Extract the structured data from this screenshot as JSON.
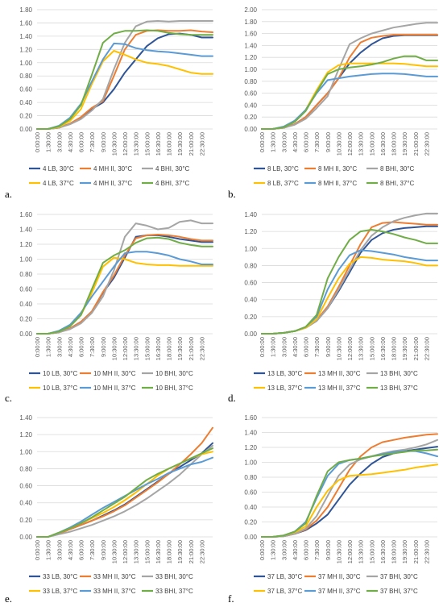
{
  "x_ticks": [
    "0:00:00",
    "1:30:00",
    "3:00:00",
    "4:30:00",
    "6:00:00",
    "7:30:00",
    "9:00:00",
    "10:30:00",
    "12:00:00",
    "13:30:00",
    "15:00:00",
    "16:30:00",
    "18:00:00",
    "19:30:00",
    "21:00:00",
    "22:30:00"
  ],
  "chart_data": [
    {
      "type": "line",
      "panel": "a.",
      "x": [
        0,
        1,
        2,
        3,
        4,
        5,
        6,
        7,
        8,
        9,
        10,
        11,
        12,
        13,
        14,
        15,
        16
      ],
      "ylim": [
        0,
        1.8
      ],
      "yticks": [
        0,
        0.2,
        0.4,
        0.6,
        0.8,
        1.0,
        1.2,
        1.4,
        1.6,
        1.8
      ],
      "ydigits": 2,
      "series": [
        {
          "name": "4 LB, 30°C",
          "color": "#2F5597",
          "values": [
            0,
            0,
            0.02,
            0.08,
            0.17,
            0.3,
            0.4,
            0.6,
            0.85,
            1.05,
            1.25,
            1.37,
            1.43,
            1.44,
            1.42,
            1.38,
            1.38
          ]
        },
        {
          "name": "4 MH II, 30°C",
          "color": "#ED7D31",
          "values": [
            0,
            0,
            0.02,
            0.08,
            0.18,
            0.32,
            0.42,
            0.8,
            1.2,
            1.42,
            1.48,
            1.49,
            1.48,
            1.48,
            1.49,
            1.47,
            1.46
          ]
        },
        {
          "name": "4 BHI, 30°C",
          "color": "#A5A5A5",
          "values": [
            0,
            0,
            0.02,
            0.07,
            0.15,
            0.28,
            0.45,
            0.9,
            1.3,
            1.55,
            1.62,
            1.63,
            1.62,
            1.63,
            1.63,
            1.63,
            1.63
          ]
        },
        {
          "name": "4 LB, 37°C",
          "color": "#FFC000",
          "values": [
            0,
            0,
            0.03,
            0.12,
            0.3,
            0.68,
            1.02,
            1.18,
            1.12,
            1.05,
            1.0,
            0.98,
            0.95,
            0.9,
            0.85,
            0.83,
            0.83
          ]
        },
        {
          "name": "4 MH II, 37°C",
          "color": "#5B9BD5",
          "values": [
            0,
            0,
            0.05,
            0.17,
            0.38,
            0.72,
            1.05,
            1.29,
            1.28,
            1.22,
            1.19,
            1.17,
            1.16,
            1.14,
            1.12,
            1.1,
            1.1
          ]
        },
        {
          "name": "4 BHI, 37°C",
          "color": "#70AD47",
          "values": [
            0,
            0,
            0.04,
            0.15,
            0.36,
            0.82,
            1.3,
            1.44,
            1.48,
            1.48,
            1.49,
            1.48,
            1.45,
            1.43,
            1.42,
            1.42,
            1.42
          ]
        }
      ]
    },
    {
      "type": "line",
      "panel": "b.",
      "x": [
        0,
        1,
        2,
        3,
        4,
        5,
        6,
        7,
        8,
        9,
        10,
        11,
        12,
        13,
        14,
        15,
        16
      ],
      "ylim": [
        0,
        2.0
      ],
      "yticks": [
        0,
        0.2,
        0.4,
        0.6,
        0.8,
        1.0,
        1.2,
        1.4,
        1.6,
        1.8,
        2.0
      ],
      "ydigits": 2,
      "series": [
        {
          "name": "8 LB, 30°C",
          "color": "#2F5597",
          "values": [
            0,
            0,
            0.02,
            0.08,
            0.2,
            0.4,
            0.6,
            0.85,
            1.1,
            1.28,
            1.42,
            1.52,
            1.56,
            1.57,
            1.57,
            1.57,
            1.57
          ]
        },
        {
          "name": "8 MH II, 30°C",
          "color": "#ED7D31",
          "values": [
            0,
            0,
            0.02,
            0.08,
            0.2,
            0.4,
            0.6,
            0.85,
            1.2,
            1.45,
            1.53,
            1.56,
            1.58,
            1.58,
            1.58,
            1.58,
            1.58
          ]
        },
        {
          "name": "8 BHI, 30°C",
          "color": "#A5A5A5",
          "values": [
            0,
            0,
            0.02,
            0.07,
            0.17,
            0.35,
            0.55,
            1.0,
            1.42,
            1.52,
            1.6,
            1.65,
            1.7,
            1.73,
            1.76,
            1.78,
            1.78
          ]
        },
        {
          "name": "8 LB, 37°C",
          "color": "#FFC000",
          "values": [
            0,
            0,
            0.03,
            0.12,
            0.32,
            0.65,
            0.95,
            1.07,
            1.1,
            1.1,
            1.1,
            1.1,
            1.1,
            1.09,
            1.07,
            1.05,
            1.05
          ]
        },
        {
          "name": "8 MH II, 37°C",
          "color": "#5B9BD5",
          "values": [
            0,
            0,
            0.04,
            0.14,
            0.32,
            0.6,
            0.82,
            0.85,
            0.88,
            0.9,
            0.92,
            0.93,
            0.93,
            0.92,
            0.9,
            0.88,
            0.88
          ]
        },
        {
          "name": "8 BHI, 37°C",
          "color": "#70AD47",
          "values": [
            0,
            0,
            0.03,
            0.12,
            0.3,
            0.62,
            0.92,
            1.0,
            1.03,
            1.05,
            1.08,
            1.12,
            1.18,
            1.22,
            1.22,
            1.15,
            1.15
          ]
        }
      ]
    },
    {
      "type": "line",
      "panel": "c.",
      "x": [
        0,
        1,
        2,
        3,
        4,
        5,
        6,
        7,
        8,
        9,
        10,
        11,
        12,
        13,
        14,
        15,
        16
      ],
      "ylim": [
        0,
        1.6
      ],
      "yticks": [
        0,
        0.2,
        0.4,
        0.6,
        0.8,
        1.0,
        1.2,
        1.4,
        1.6
      ],
      "ydigits": 2,
      "series": [
        {
          "name": "10 LB, 30°C",
          "color": "#2F5597",
          "values": [
            0,
            0,
            0.02,
            0.07,
            0.16,
            0.3,
            0.55,
            0.75,
            1.02,
            1.3,
            1.32,
            1.32,
            1.3,
            1.27,
            1.25,
            1.23,
            1.23
          ]
        },
        {
          "name": "10 MH II, 30°C",
          "color": "#ED7D31",
          "values": [
            0,
            0,
            0.02,
            0.07,
            0.16,
            0.3,
            0.56,
            0.78,
            1.05,
            1.28,
            1.32,
            1.33,
            1.32,
            1.3,
            1.27,
            1.25,
            1.25
          ]
        },
        {
          "name": "10 BHI, 30°C",
          "color": "#A5A5A5",
          "values": [
            0,
            0,
            0.02,
            0.06,
            0.14,
            0.28,
            0.5,
            0.85,
            1.3,
            1.48,
            1.45,
            1.4,
            1.42,
            1.5,
            1.52,
            1.48,
            1.48
          ]
        },
        {
          "name": "10 LB, 37°C",
          "color": "#FFC000",
          "values": [
            0,
            0,
            0.03,
            0.1,
            0.25,
            0.55,
            0.9,
            1.02,
            1.0,
            0.95,
            0.93,
            0.92,
            0.92,
            0.91,
            0.91,
            0.91,
            0.91
          ]
        },
        {
          "name": "10 MH II, 37°C",
          "color": "#5B9BD5",
          "values": [
            0,
            0,
            0.04,
            0.12,
            0.28,
            0.5,
            0.7,
            0.9,
            1.08,
            1.1,
            1.1,
            1.08,
            1.05,
            1.0,
            0.97,
            0.93,
            0.93
          ]
        },
        {
          "name": "10 BHI, 37°C",
          "color": "#70AD47",
          "values": [
            0,
            0,
            0.03,
            0.1,
            0.25,
            0.6,
            0.95,
            1.05,
            1.12,
            1.22,
            1.28,
            1.29,
            1.27,
            1.22,
            1.19,
            1.17,
            1.17
          ]
        }
      ]
    },
    {
      "type": "line",
      "panel": "d.",
      "x": [
        0,
        1,
        2,
        3,
        4,
        5,
        6,
        7,
        8,
        9,
        10,
        11,
        12,
        13,
        14,
        15,
        16
      ],
      "ylim": [
        0,
        1.4
      ],
      "yticks": [
        0,
        0.2,
        0.4,
        0.6,
        0.8,
        1.0,
        1.2,
        1.4
      ],
      "ydigits": 2,
      "series": [
        {
          "name": "13 LB, 30°C",
          "color": "#2F5597",
          "values": [
            0,
            0,
            0.01,
            0.03,
            0.07,
            0.15,
            0.3,
            0.5,
            0.72,
            0.95,
            1.1,
            1.18,
            1.22,
            1.24,
            1.25,
            1.26,
            1.26
          ]
        },
        {
          "name": "13 MH II, 30°C",
          "color": "#ED7D31",
          "values": [
            0,
            0,
            0.01,
            0.03,
            0.07,
            0.16,
            0.32,
            0.55,
            0.8,
            1.05,
            1.25,
            1.3,
            1.31,
            1.3,
            1.29,
            1.28,
            1.28
          ]
        },
        {
          "name": "13 BHI, 30°C",
          "color": "#A5A5A5",
          "values": [
            0,
            0,
            0.01,
            0.03,
            0.07,
            0.15,
            0.3,
            0.52,
            0.75,
            0.98,
            1.15,
            1.25,
            1.32,
            1.36,
            1.39,
            1.41,
            1.41
          ]
        },
        {
          "name": "13 LB, 37°C",
          "color": "#FFC000",
          "values": [
            0,
            0,
            0.01,
            0.03,
            0.07,
            0.17,
            0.42,
            0.65,
            0.82,
            0.9,
            0.89,
            0.87,
            0.86,
            0.85,
            0.83,
            0.8,
            0.8
          ]
        },
        {
          "name": "13 MH II, 37°C",
          "color": "#5B9BD5",
          "values": [
            0,
            0,
            0.01,
            0.03,
            0.08,
            0.2,
            0.52,
            0.75,
            0.92,
            0.98,
            0.97,
            0.95,
            0.93,
            0.9,
            0.88,
            0.86,
            0.86
          ]
        },
        {
          "name": "13 BHI, 37°C",
          "color": "#70AD47",
          "values": [
            0,
            0,
            0.01,
            0.03,
            0.08,
            0.22,
            0.65,
            0.9,
            1.1,
            1.2,
            1.22,
            1.2,
            1.17,
            1.13,
            1.1,
            1.06,
            1.06
          ]
        }
      ]
    },
    {
      "type": "line",
      "panel": "e.",
      "x": [
        0,
        1,
        2,
        3,
        4,
        5,
        6,
        7,
        8,
        9,
        10,
        11,
        12,
        13,
        14,
        15,
        16
      ],
      "ylim": [
        0,
        1.4
      ],
      "yticks": [
        0,
        0.2,
        0.4,
        0.6,
        0.8,
        1.0,
        1.2,
        1.4
      ],
      "ydigits": 2,
      "series": [
        {
          "name": "33 LB, 30°C",
          "color": "#2F5597",
          "values": [
            0,
            0,
            0.04,
            0.09,
            0.14,
            0.19,
            0.25,
            0.31,
            0.38,
            0.47,
            0.56,
            0.65,
            0.74,
            0.82,
            0.9,
            0.98,
            1.1
          ]
        },
        {
          "name": "33 MH II, 30°C",
          "color": "#ED7D31",
          "values": [
            0,
            0,
            0.04,
            0.09,
            0.14,
            0.19,
            0.24,
            0.3,
            0.37,
            0.46,
            0.55,
            0.64,
            0.74,
            0.85,
            0.97,
            1.1,
            1.28
          ]
        },
        {
          "name": "33 BHI, 30°C",
          "color": "#A5A5A5",
          "values": [
            0,
            0,
            0.03,
            0.06,
            0.1,
            0.14,
            0.19,
            0.24,
            0.3,
            0.37,
            0.45,
            0.54,
            0.63,
            0.73,
            0.85,
            0.97,
            1.07
          ]
        },
        {
          "name": "33 LB, 37°C",
          "color": "#FFC000",
          "values": [
            0,
            0,
            0.05,
            0.1,
            0.16,
            0.22,
            0.28,
            0.35,
            0.43,
            0.52,
            0.62,
            0.72,
            0.8,
            0.86,
            0.92,
            0.97,
            1.0
          ]
        },
        {
          "name": "33 MH II, 37°C",
          "color": "#5B9BD5",
          "values": [
            0,
            0,
            0.05,
            0.11,
            0.18,
            0.26,
            0.34,
            0.41,
            0.48,
            0.55,
            0.62,
            0.68,
            0.75,
            0.8,
            0.85,
            0.88,
            0.93
          ]
        },
        {
          "name": "33 BHI, 37°C",
          "color": "#70AD47",
          "values": [
            0,
            0,
            0.05,
            0.1,
            0.16,
            0.23,
            0.31,
            0.39,
            0.47,
            0.57,
            0.67,
            0.74,
            0.8,
            0.86,
            0.92,
            0.98,
            1.04
          ]
        }
      ]
    },
    {
      "type": "line",
      "panel": "f.",
      "x": [
        0,
        1,
        2,
        3,
        4,
        5,
        6,
        7,
        8,
        9,
        10,
        11,
        12,
        13,
        14,
        15,
        16
      ],
      "ylim": [
        0,
        1.6
      ],
      "yticks": [
        0,
        0.2,
        0.4,
        0.6,
        0.8,
        1.0,
        1.2,
        1.4,
        1.6
      ],
      "ydigits": 2,
      "series": [
        {
          "name": "37 LB, 30°C",
          "color": "#2F5597",
          "values": [
            0,
            0,
            0.01,
            0.04,
            0.09,
            0.18,
            0.3,
            0.5,
            0.7,
            0.85,
            0.98,
            1.07,
            1.12,
            1.15,
            1.17,
            1.19,
            1.21
          ]
        },
        {
          "name": "37 MH II, 30°C",
          "color": "#ED7D31",
          "values": [
            0,
            0,
            0.01,
            0.04,
            0.1,
            0.22,
            0.4,
            0.65,
            0.9,
            1.08,
            1.2,
            1.27,
            1.3,
            1.33,
            1.35,
            1.37,
            1.38
          ]
        },
        {
          "name": "37 BHI, 30°C",
          "color": "#A5A5A5",
          "values": [
            0,
            0,
            0.01,
            0.04,
            0.11,
            0.28,
            0.55,
            0.82,
            0.97,
            1.04,
            1.08,
            1.12,
            1.15,
            1.17,
            1.2,
            1.24,
            1.3
          ]
        },
        {
          "name": "37 LB, 37°C",
          "color": "#FFC000",
          "values": [
            0,
            0,
            0.02,
            0.06,
            0.14,
            0.4,
            0.62,
            0.76,
            0.82,
            0.83,
            0.84,
            0.86,
            0.88,
            0.9,
            0.93,
            0.95,
            0.97
          ]
        },
        {
          "name": "37 MH II, 37°C",
          "color": "#5B9BD5",
          "values": [
            0,
            0,
            0.02,
            0.07,
            0.2,
            0.52,
            0.82,
            0.98,
            1.03,
            1.05,
            1.08,
            1.11,
            1.14,
            1.15,
            1.15,
            1.12,
            1.08
          ]
        },
        {
          "name": "37 BHI, 37°C",
          "color": "#70AD47",
          "values": [
            0,
            0,
            0.02,
            0.07,
            0.18,
            0.55,
            0.88,
            1.0,
            1.03,
            1.05,
            1.08,
            1.1,
            1.12,
            1.14,
            1.16,
            1.16,
            1.17
          ]
        }
      ]
    }
  ]
}
